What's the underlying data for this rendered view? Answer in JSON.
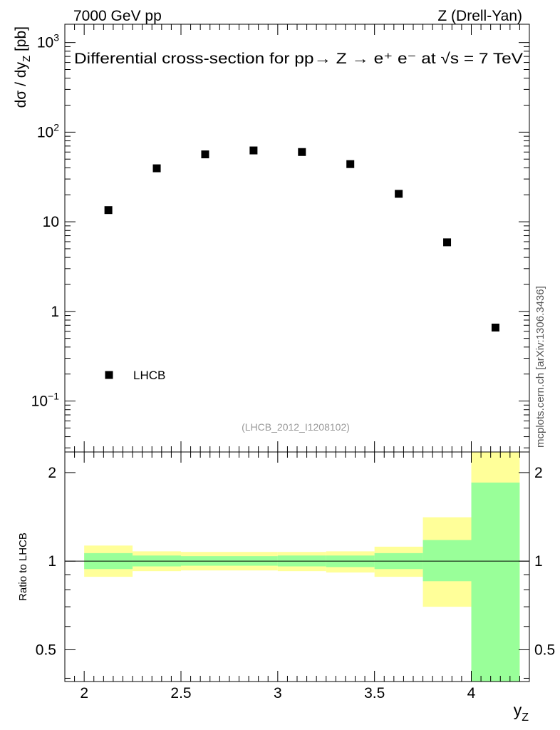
{
  "header": {
    "left": "7000 GeV pp",
    "right": "Z (Drell-Yan)"
  },
  "side_label": "mcplots.cern.ch [arXiv:1306.3436]",
  "analysis_tag": "(LHCB_2012_I1208102)",
  "chart_data": [
    {
      "type": "scatter",
      "title": "Differential cross-section for pp→ Z → e⁺ e⁻ at √s = 7 TeV",
      "ylabel": "dσ / dy_Z [pb]",
      "xlabel": "y_Z",
      "yscale": "log",
      "xlim": [
        1.9,
        4.3
      ],
      "ylim": [
        0.027,
        1600
      ],
      "ytick_labels": [
        "10⁻¹",
        "1",
        "10",
        "10²",
        "10³"
      ],
      "ytick_values": [
        0.1,
        1,
        10,
        100,
        1000
      ],
      "legend_position": "bottom-left",
      "series": [
        {
          "name": "LHCB",
          "color": "#000000",
          "marker": "square",
          "x": [
            2.125,
            2.375,
            2.625,
            2.875,
            3.125,
            3.375,
            3.625,
            3.875,
            4.125
          ],
          "y": [
            13.5,
            39.5,
            56.5,
            62.5,
            60.0,
            44.0,
            20.5,
            5.9,
            0.66
          ]
        }
      ]
    },
    {
      "type": "area",
      "ylabel": "Ratio to LHCB",
      "xlabel": "y_Z",
      "yscale": "log",
      "xlim": [
        1.9,
        4.3
      ],
      "ylim": [
        0.39,
        2.35
      ],
      "xtick_labels": [
        "2",
        "2.5",
        "3",
        "3.5",
        "4"
      ],
      "xtick_values": [
        2,
        2.5,
        3,
        3.5,
        4
      ],
      "ytick_labels": [
        "0.5",
        "1",
        "2"
      ],
      "ytick_values": [
        0.5,
        1,
        2
      ],
      "reference_line": 1,
      "bands": [
        {
          "color": "#ffff99",
          "bins": [
            {
              "x0": 2.0,
              "x1": 2.25,
              "lo": 0.885,
              "hi": 1.13
            },
            {
              "x0": 2.25,
              "x1": 2.5,
              "lo": 0.925,
              "hi": 1.08
            },
            {
              "x0": 2.5,
              "x1": 3.0,
              "lo": 0.93,
              "hi": 1.075
            },
            {
              "x0": 3.0,
              "x1": 3.25,
              "lo": 0.925,
              "hi": 1.075
            },
            {
              "x0": 3.25,
              "x1": 3.5,
              "lo": 0.915,
              "hi": 1.08
            },
            {
              "x0": 3.5,
              "x1": 3.75,
              "lo": 0.885,
              "hi": 1.12
            },
            {
              "x0": 3.75,
              "x1": 4.0,
              "lo": 0.7,
              "hi": 1.41
            },
            {
              "x0": 4.0,
              "x1": 4.25,
              "lo": 0.39,
              "hi": 2.35
            }
          ]
        },
        {
          "color": "#99ff99",
          "bins": [
            {
              "x0": 2.0,
              "x1": 2.25,
              "lo": 0.94,
              "hi": 1.065
            },
            {
              "x0": 2.25,
              "x1": 2.5,
              "lo": 0.96,
              "hi": 1.045
            },
            {
              "x0": 2.5,
              "x1": 3.0,
              "lo": 0.965,
              "hi": 1.04
            },
            {
              "x0": 3.0,
              "x1": 3.25,
              "lo": 0.96,
              "hi": 1.045
            },
            {
              "x0": 3.25,
              "x1": 3.5,
              "lo": 0.955,
              "hi": 1.045
            },
            {
              "x0": 3.5,
              "x1": 3.75,
              "lo": 0.94,
              "hi": 1.065
            },
            {
              "x0": 3.75,
              "x1": 4.0,
              "lo": 0.855,
              "hi": 1.18
            },
            {
              "x0": 4.0,
              "x1": 4.25,
              "lo": 0.39,
              "hi": 1.85
            }
          ]
        }
      ]
    }
  ]
}
